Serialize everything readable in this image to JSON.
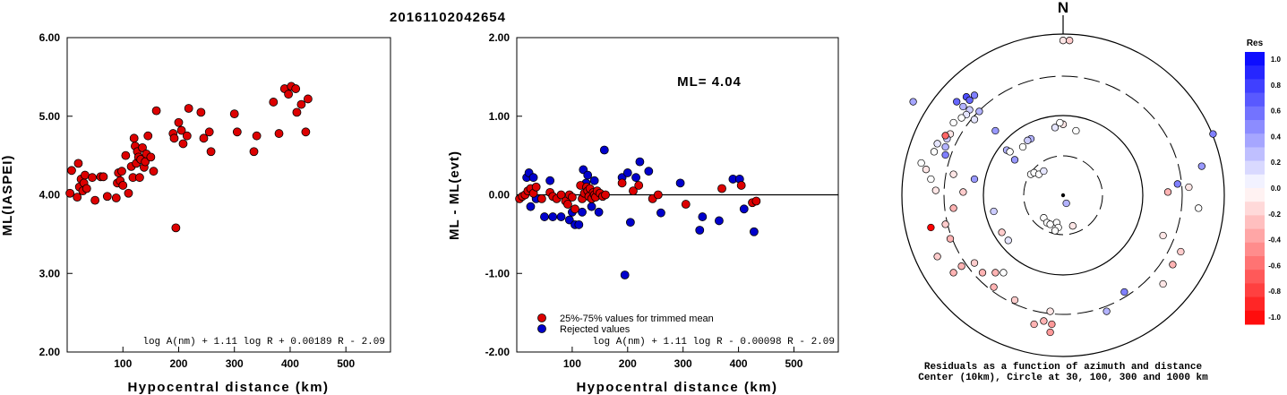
{
  "figure_title": "20161102042654",
  "chart_data": [
    {
      "type": "scatter",
      "xlabel": "Hypocentral distance (km)",
      "ylabel": "ML(IASPEI)",
      "xlim": [
        0,
        580
      ],
      "ylim": [
        2.0,
        6.0
      ],
      "x_ticks": [
        "100",
        "200",
        "300",
        "400",
        "500"
      ],
      "y_ticks": [
        "2.00",
        "3.00",
        "4.00",
        "5.00",
        "6.00"
      ],
      "formula": "log A(nm) + 1.11 log R + 0.00189 R - 2.09",
      "point_color": "#dd0000",
      "points": [
        [
          5,
          4.02
        ],
        [
          8,
          4.31
        ],
        [
          18,
          3.97
        ],
        [
          20,
          4.4
        ],
        [
          22,
          4.1
        ],
        [
          25,
          4.2
        ],
        [
          28,
          4.05
        ],
        [
          30,
          4.15
        ],
        [
          32,
          4.25
        ],
        [
          35,
          4.08
        ],
        [
          45,
          4.22
        ],
        [
          50,
          3.93
        ],
        [
          60,
          4.23
        ],
        [
          65,
          4.23
        ],
        [
          72,
          3.98
        ],
        [
          88,
          3.96
        ],
        [
          90,
          4.15
        ],
        [
          92,
          4.28
        ],
        [
          95,
          4.18
        ],
        [
          98,
          4.3
        ],
        [
          100,
          4.12
        ],
        [
          105,
          4.5
        ],
        [
          110,
          4.02
        ],
        [
          115,
          4.36
        ],
        [
          118,
          4.22
        ],
        [
          120,
          4.72
        ],
        [
          122,
          4.62
        ],
        [
          124,
          4.4
        ],
        [
          126,
          4.55
        ],
        [
          128,
          4.48
        ],
        [
          130,
          4.22
        ],
        [
          132,
          4.45
        ],
        [
          135,
          4.6
        ],
        [
          138,
          4.35
        ],
        [
          140,
          4.42
        ],
        [
          142,
          4.52
        ],
        [
          145,
          4.75
        ],
        [
          150,
          4.48
        ],
        [
          155,
          4.3
        ],
        [
          160,
          5.07
        ],
        [
          190,
          4.78
        ],
        [
          192,
          4.72
        ],
        [
          195,
          3.58
        ],
        [
          200,
          4.92
        ],
        [
          205,
          4.82
        ],
        [
          208,
          4.65
        ],
        [
          215,
          4.75
        ],
        [
          218,
          5.1
        ],
        [
          240,
          5.05
        ],
        [
          245,
          4.72
        ],
        [
          255,
          4.8
        ],
        [
          258,
          4.55
        ],
        [
          300,
          5.03
        ],
        [
          305,
          4.8
        ],
        [
          335,
          4.55
        ],
        [
          340,
          4.75
        ],
        [
          370,
          5.18
        ],
        [
          380,
          4.78
        ],
        [
          390,
          5.35
        ],
        [
          397,
          5.28
        ],
        [
          402,
          5.38
        ],
        [
          410,
          5.35
        ],
        [
          412,
          5.05
        ],
        [
          420,
          5.15
        ],
        [
          428,
          4.8
        ],
        [
          432,
          5.22
        ]
      ]
    },
    {
      "type": "scatter",
      "xlabel": "Hypocentral distance (km)",
      "ylabel": "ML - ML(evt)",
      "xlim": [
        0,
        580
      ],
      "ylim": [
        -2.0,
        2.0
      ],
      "x_ticks": [
        "100",
        "200",
        "300",
        "400",
        "500"
      ],
      "y_ticks": [
        "-2.00",
        "-1.00",
        "0.00",
        "1.00",
        "2.00"
      ],
      "reference_line": 0.0,
      "annotation": "ML= 4.04",
      "formula": "log A(nm) + 1.11 log R - 0.00098 R - 2.09",
      "legend": {
        "position": "bottom-left",
        "entries": [
          {
            "label": "25%-75% values for trimmed mean",
            "color": "#dd0000"
          },
          {
            "label": "Rejected values",
            "color": "#0000cc"
          }
        ]
      },
      "series": [
        {
          "name": "25%-75% values for trimmed mean",
          "color": "#dd0000",
          "points": [
            [
              5,
              -0.05
            ],
            [
              10,
              -0.02
            ],
            [
              15,
              0.0
            ],
            [
              20,
              0.05
            ],
            [
              25,
              0.08
            ],
            [
              30,
              0.02
            ],
            [
              35,
              0.1
            ],
            [
              45,
              -0.05
            ],
            [
              60,
              0.03
            ],
            [
              65,
              -0.02
            ],
            [
              72,
              -0.05
            ],
            [
              80,
              0.0
            ],
            [
              88,
              -0.08
            ],
            [
              92,
              -0.12
            ],
            [
              95,
              0.0
            ],
            [
              100,
              -0.03
            ],
            [
              105,
              -0.18
            ],
            [
              115,
              0.12
            ],
            [
              118,
              -0.05
            ],
            [
              122,
              0.02
            ],
            [
              126,
              0.1
            ],
            [
              128,
              0.05
            ],
            [
              130,
              -0.02
            ],
            [
              132,
              0.08
            ],
            [
              135,
              -0.05
            ],
            [
              138,
              0.03
            ],
            [
              140,
              0.0
            ],
            [
              142,
              -0.03
            ],
            [
              145,
              0.05
            ],
            [
              150,
              0.02
            ],
            [
              155,
              -0.02
            ],
            [
              160,
              0.0
            ],
            [
              190,
              0.15
            ],
            [
              210,
              0.05
            ],
            [
              220,
              0.12
            ],
            [
              245,
              -0.05
            ],
            [
              255,
              0.0
            ],
            [
              305,
              -0.12
            ],
            [
              370,
              0.08
            ],
            [
              405,
              0.12
            ],
            [
              425,
              -0.1
            ],
            [
              432,
              -0.08
            ]
          ]
        },
        {
          "name": "Rejected values",
          "color": "#0000cc",
          "points": [
            [
              18,
              0.22
            ],
            [
              22,
              0.28
            ],
            [
              25,
              -0.15
            ],
            [
              30,
              0.22
            ],
            [
              35,
              -0.05
            ],
            [
              50,
              -0.28
            ],
            [
              60,
              0.18
            ],
            [
              65,
              -0.28
            ],
            [
              80,
              -0.28
            ],
            [
              95,
              -0.32
            ],
            [
              100,
              -0.22
            ],
            [
              105,
              -0.38
            ],
            [
              112,
              -0.38
            ],
            [
              118,
              -0.22
            ],
            [
              120,
              0.32
            ],
            [
              125,
              0.15
            ],
            [
              128,
              0.25
            ],
            [
              135,
              -0.15
            ],
            [
              140,
              0.18
            ],
            [
              148,
              -0.22
            ],
            [
              158,
              0.57
            ],
            [
              190,
              0.22
            ],
            [
              195,
              -1.02
            ],
            [
              200,
              0.28
            ],
            [
              205,
              -0.35
            ],
            [
              215,
              0.22
            ],
            [
              222,
              0.42
            ],
            [
              238,
              0.3
            ],
            [
              260,
              -0.23
            ],
            [
              295,
              0.15
            ],
            [
              330,
              -0.45
            ],
            [
              335,
              -0.28
            ],
            [
              365,
              -0.33
            ],
            [
              390,
              0.2
            ],
            [
              402,
              0.2
            ],
            [
              410,
              -0.18
            ],
            [
              428,
              -0.47
            ]
          ]
        }
      ]
    },
    {
      "type": "polar",
      "north_label": "N",
      "caption_line1": "Residuals as a function of azimuth and distance",
      "caption_line2": "Center (10km), Circle at 30, 100, 300 and 1000 km",
      "colorbar": {
        "title": "Res",
        "ticks": [
          "1.0",
          "0.8",
          "0.6",
          "0.4",
          "0.2",
          "0.0",
          "-0.2",
          "-0.4",
          "-0.6",
          "-0.8",
          "-1.0"
        ],
        "range": [
          -1.0,
          1.0
        ]
      },
      "stations": [
        [
          -0.93,
          0.58,
          0.35
        ],
        [
          -0.66,
          0.58,
          0.6
        ],
        [
          -0.6,
          0.61,
          0.7
        ],
        [
          -0.58,
          0.59,
          0.6
        ],
        [
          -0.55,
          0.62,
          0.5
        ],
        [
          -0.62,
          0.55,
          0.3
        ],
        [
          -0.58,
          0.53,
          0.2
        ],
        [
          -0.6,
          0.5,
          0.1
        ],
        [
          -0.63,
          0.48,
          0.0
        ],
        [
          -0.52,
          0.52,
          0.3
        ],
        [
          -0.55,
          0.47,
          0.1
        ],
        [
          -0.68,
          0.45,
          0.0
        ],
        [
          -0.7,
          0.38,
          -0.1
        ],
        [
          -0.72,
          0.35,
          0.2
        ],
        [
          -0.73,
          0.3,
          0.3
        ],
        [
          -0.78,
          0.32,
          0.1
        ],
        [
          -0.8,
          0.27,
          0.0
        ],
        [
          -0.73,
          0.25,
          0.5
        ],
        [
          -0.88,
          0.2,
          0.0
        ],
        [
          -0.85,
          0.16,
          -0.1
        ],
        [
          -0.82,
          0.1,
          0.0
        ],
        [
          -0.79,
          0.03,
          -0.1
        ],
        [
          -0.68,
          0.13,
          -0.1
        ],
        [
          -0.55,
          0.1,
          0.4
        ],
        [
          -0.43,
          -0.1,
          0.2
        ],
        [
          -0.38,
          -0.23,
          -0.2
        ],
        [
          -0.34,
          -0.28,
          0.1
        ],
        [
          -0.62,
          0.02,
          -0.2
        ],
        [
          -0.68,
          -0.08,
          -0.3
        ],
        [
          -0.73,
          -0.18,
          -0.2
        ],
        [
          -0.7,
          -0.27,
          -0.3
        ],
        [
          -0.78,
          -0.38,
          -0.2
        ],
        [
          -0.63,
          -0.44,
          -0.3
        ],
        [
          -0.55,
          -0.42,
          -0.2
        ],
        [
          -0.5,
          -0.48,
          -0.3
        ],
        [
          -0.42,
          -0.48,
          -0.3
        ],
        [
          -0.37,
          -0.48,
          0.0
        ],
        [
          -0.43,
          -0.57,
          -0.3
        ],
        [
          -0.68,
          -0.48,
          -0.3
        ],
        [
          -0.82,
          -0.2,
          -1.0
        ],
        [
          -0.73,
          0.37,
          -0.6
        ],
        [
          -0.42,
          0.4,
          0.4
        ],
        [
          -0.35,
          0.28,
          0.3
        ],
        [
          -0.3,
          0.22,
          0.4
        ],
        [
          -0.33,
          0.27,
          0.0
        ],
        [
          -0.25,
          0.3,
          0.0
        ],
        [
          -0.2,
          0.35,
          0.3
        ],
        [
          -0.2,
          0.13,
          0.0
        ],
        [
          -0.18,
          0.14,
          0.0
        ],
        [
          -0.15,
          0.13,
          0.0
        ],
        [
          -0.12,
          0.15,
          0.1
        ],
        [
          -0.22,
          0.34,
          0.2
        ],
        [
          -0.12,
          -0.14,
          0.0
        ],
        [
          -0.1,
          -0.17,
          0.0
        ],
        [
          -0.08,
          -0.18,
          0.0
        ],
        [
          -0.04,
          -0.17,
          0.0
        ],
        [
          -0.03,
          -0.2,
          0.0
        ],
        [
          -0.05,
          -0.22,
          0.0
        ],
        [
          0.06,
          -0.19,
          -0.1
        ],
        [
          0.02,
          -0.05,
          0.3
        ],
        [
          -0.3,
          -0.65,
          -0.2
        ],
        [
          -0.08,
          -0.72,
          -0.1
        ],
        [
          -0.12,
          -0.78,
          -0.3
        ],
        [
          -0.18,
          -0.8,
          -0.3
        ],
        [
          -0.07,
          -0.8,
          -0.4
        ],
        [
          -0.08,
          -0.85,
          -0.4
        ],
        [
          0.27,
          -0.72,
          0.3
        ],
        [
          0.38,
          -0.6,
          0.5
        ],
        [
          0.62,
          -0.55,
          -0.1
        ],
        [
          0.68,
          -0.43,
          -0.3
        ],
        [
          0.73,
          -0.35,
          -0.2
        ],
        [
          0.62,
          -0.25,
          -0.1
        ],
        [
          0.65,
          0.02,
          -0.3
        ],
        [
          0.71,
          0.07,
          0.5
        ],
        [
          0.78,
          0.05,
          -0.1
        ],
        [
          0.84,
          -0.08,
          0.0
        ],
        [
          0.86,
          0.18,
          0.4
        ],
        [
          0.93,
          0.38,
          0.5
        ],
        [
          0.0,
          0.96,
          -0.1
        ],
        [
          0.04,
          0.96,
          -0.2
        ],
        [
          0.08,
          0.4,
          0.0
        ],
        [
          0.0,
          0.44,
          -0.1
        ],
        [
          -0.02,
          0.45,
          0.0
        ],
        [
          -0.05,
          0.42,
          0.1
        ]
      ]
    }
  ]
}
